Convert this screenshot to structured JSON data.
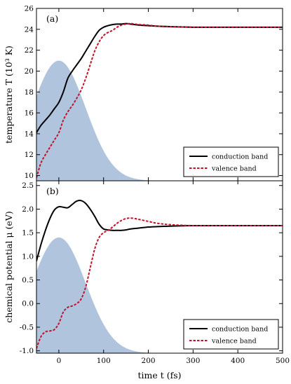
{
  "chart_data": [
    {
      "type": "line",
      "panel_label": "(a)",
      "ylabel": "temperature T (10³ K)",
      "xlim": [
        -50,
        500
      ],
      "ylim": [
        9.5,
        26
      ],
      "yticks": [
        10,
        12,
        14,
        16,
        18,
        20,
        22,
        24,
        26
      ],
      "legend_position": "lower-right",
      "pulse": {
        "center": 0,
        "sigma": 60,
        "min": 9.5,
        "peak": 21.0,
        "color": "#b0c4de"
      },
      "series": [
        {
          "name": "conduction band",
          "color": "#000000",
          "dash": "solid",
          "x": [
            -50,
            -40,
            -30,
            -20,
            -10,
            0,
            10,
            20,
            30,
            40,
            50,
            60,
            70,
            80,
            90,
            100,
            110,
            120,
            130,
            140,
            150,
            160,
            170,
            180,
            200,
            220,
            250,
            300,
            350,
            400,
            450,
            500
          ],
          "y": [
            14.1,
            14.8,
            15.3,
            15.8,
            16.4,
            17.0,
            18.0,
            19.3,
            20.0,
            20.6,
            21.2,
            21.9,
            22.6,
            23.3,
            23.9,
            24.2,
            24.35,
            24.45,
            24.5,
            24.5,
            24.55,
            24.5,
            24.45,
            24.4,
            24.35,
            24.3,
            24.25,
            24.2,
            24.2,
            24.2,
            24.2,
            24.2
          ]
        },
        {
          "name": "valence band",
          "color": "#c0142c",
          "dash": "dashed",
          "x": [
            -50,
            -40,
            -30,
            -20,
            -10,
            0,
            10,
            20,
            30,
            40,
            50,
            60,
            70,
            80,
            90,
            100,
            110,
            120,
            130,
            140,
            150,
            160,
            170,
            180,
            200,
            220,
            250,
            300,
            350,
            400,
            450,
            500
          ],
          "y": [
            9.8,
            11.2,
            12.0,
            12.7,
            13.4,
            14.1,
            15.3,
            16.1,
            16.7,
            17.4,
            18.2,
            19.3,
            20.6,
            21.9,
            22.8,
            23.4,
            23.7,
            23.9,
            24.2,
            24.4,
            24.5,
            24.55,
            24.5,
            24.45,
            24.4,
            24.3,
            24.25,
            24.2,
            24.2,
            24.2,
            24.2,
            24.2
          ]
        }
      ]
    },
    {
      "type": "line",
      "panel_label": "(b)",
      "ylabel": "chemical potential μ (eV)",
      "xlabel": "time t (fs)",
      "xlim": [
        -50,
        500
      ],
      "ylim": [
        -1.05,
        2.6
      ],
      "xticks": [
        0,
        100,
        200,
        300,
        400,
        500
      ],
      "yticks": [
        -1.0,
        -0.5,
        0.0,
        0.5,
        1.0,
        1.5,
        2.0,
        2.5
      ],
      "ytick_labels": [
        "-1.0",
        "-0.5",
        "0.0",
        "0.5",
        "1.0",
        "1.5",
        "2.0",
        "2.5"
      ],
      "legend_position": "lower-right",
      "pulse": {
        "center": 0,
        "sigma": 60,
        "min": -1.05,
        "peak": 1.4,
        "color": "#b0c4de"
      },
      "series": [
        {
          "name": "conduction band",
          "color": "#000000",
          "dash": "solid",
          "x": [
            -50,
            -40,
            -30,
            -20,
            -10,
            0,
            10,
            20,
            30,
            40,
            50,
            60,
            70,
            80,
            90,
            100,
            110,
            120,
            130,
            140,
            150,
            160,
            180,
            200,
            220,
            250,
            300,
            350,
            400,
            450,
            500
          ],
          "y": [
            0.9,
            1.25,
            1.55,
            1.8,
            1.98,
            2.05,
            2.04,
            2.03,
            2.1,
            2.17,
            2.18,
            2.12,
            2.0,
            1.85,
            1.68,
            1.58,
            1.56,
            1.55,
            1.55,
            1.55,
            1.56,
            1.58,
            1.6,
            1.62,
            1.63,
            1.64,
            1.65,
            1.65,
            1.65,
            1.65,
            1.65
          ]
        },
        {
          "name": "valence band",
          "color": "#c0142c",
          "dash": "dashed",
          "x": [
            -50,
            -40,
            -30,
            -20,
            -10,
            0,
            10,
            20,
            30,
            40,
            50,
            60,
            70,
            80,
            90,
            100,
            110,
            120,
            130,
            140,
            150,
            160,
            170,
            180,
            200,
            220,
            250,
            300,
            350,
            400,
            450,
            500
          ],
          "y": [
            -0.95,
            -0.7,
            -0.6,
            -0.58,
            -0.55,
            -0.42,
            -0.18,
            -0.08,
            -0.05,
            0.0,
            0.1,
            0.35,
            0.75,
            1.15,
            1.4,
            1.5,
            1.55,
            1.62,
            1.7,
            1.76,
            1.8,
            1.81,
            1.8,
            1.78,
            1.74,
            1.7,
            1.67,
            1.65,
            1.65,
            1.65,
            1.65,
            1.65
          ]
        }
      ]
    }
  ]
}
